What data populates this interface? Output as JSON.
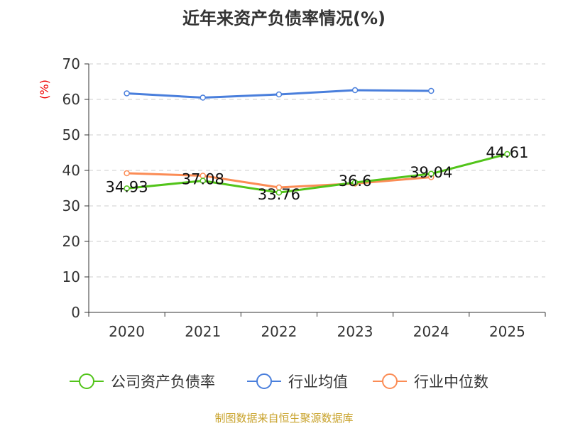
{
  "chart_data": {
    "type": "line",
    "title": "近年来资产负债率情况(%)",
    "ylabel": "(%)",
    "xlabel": "",
    "categories": [
      "2020",
      "2021",
      "2022",
      "2023",
      "2024",
      "2025"
    ],
    "ylim": [
      0,
      70
    ],
    "yticks": [
      0,
      10,
      20,
      30,
      40,
      50,
      60,
      70
    ],
    "grid": true,
    "legend_position": "bottom",
    "series": [
      {
        "name": "公司资产负债率",
        "color": "#52c41a",
        "values": [
          34.93,
          37.08,
          33.76,
          36.6,
          39.04,
          44.61
        ],
        "labels": [
          "34.93",
          "37.08",
          "33.76",
          "36.6",
          "39.04",
          "44.61"
        ]
      },
      {
        "name": "行业均值",
        "color": "#4a7fdc",
        "values": [
          61.7,
          60.5,
          61.4,
          62.6,
          62.4,
          null
        ]
      },
      {
        "name": "行业中位数",
        "color": "#fb8c55",
        "values": [
          39.2,
          38.5,
          35.2,
          36.3,
          38.1,
          null
        ]
      }
    ]
  },
  "source": "制图数据来自恒生聚源数据库"
}
